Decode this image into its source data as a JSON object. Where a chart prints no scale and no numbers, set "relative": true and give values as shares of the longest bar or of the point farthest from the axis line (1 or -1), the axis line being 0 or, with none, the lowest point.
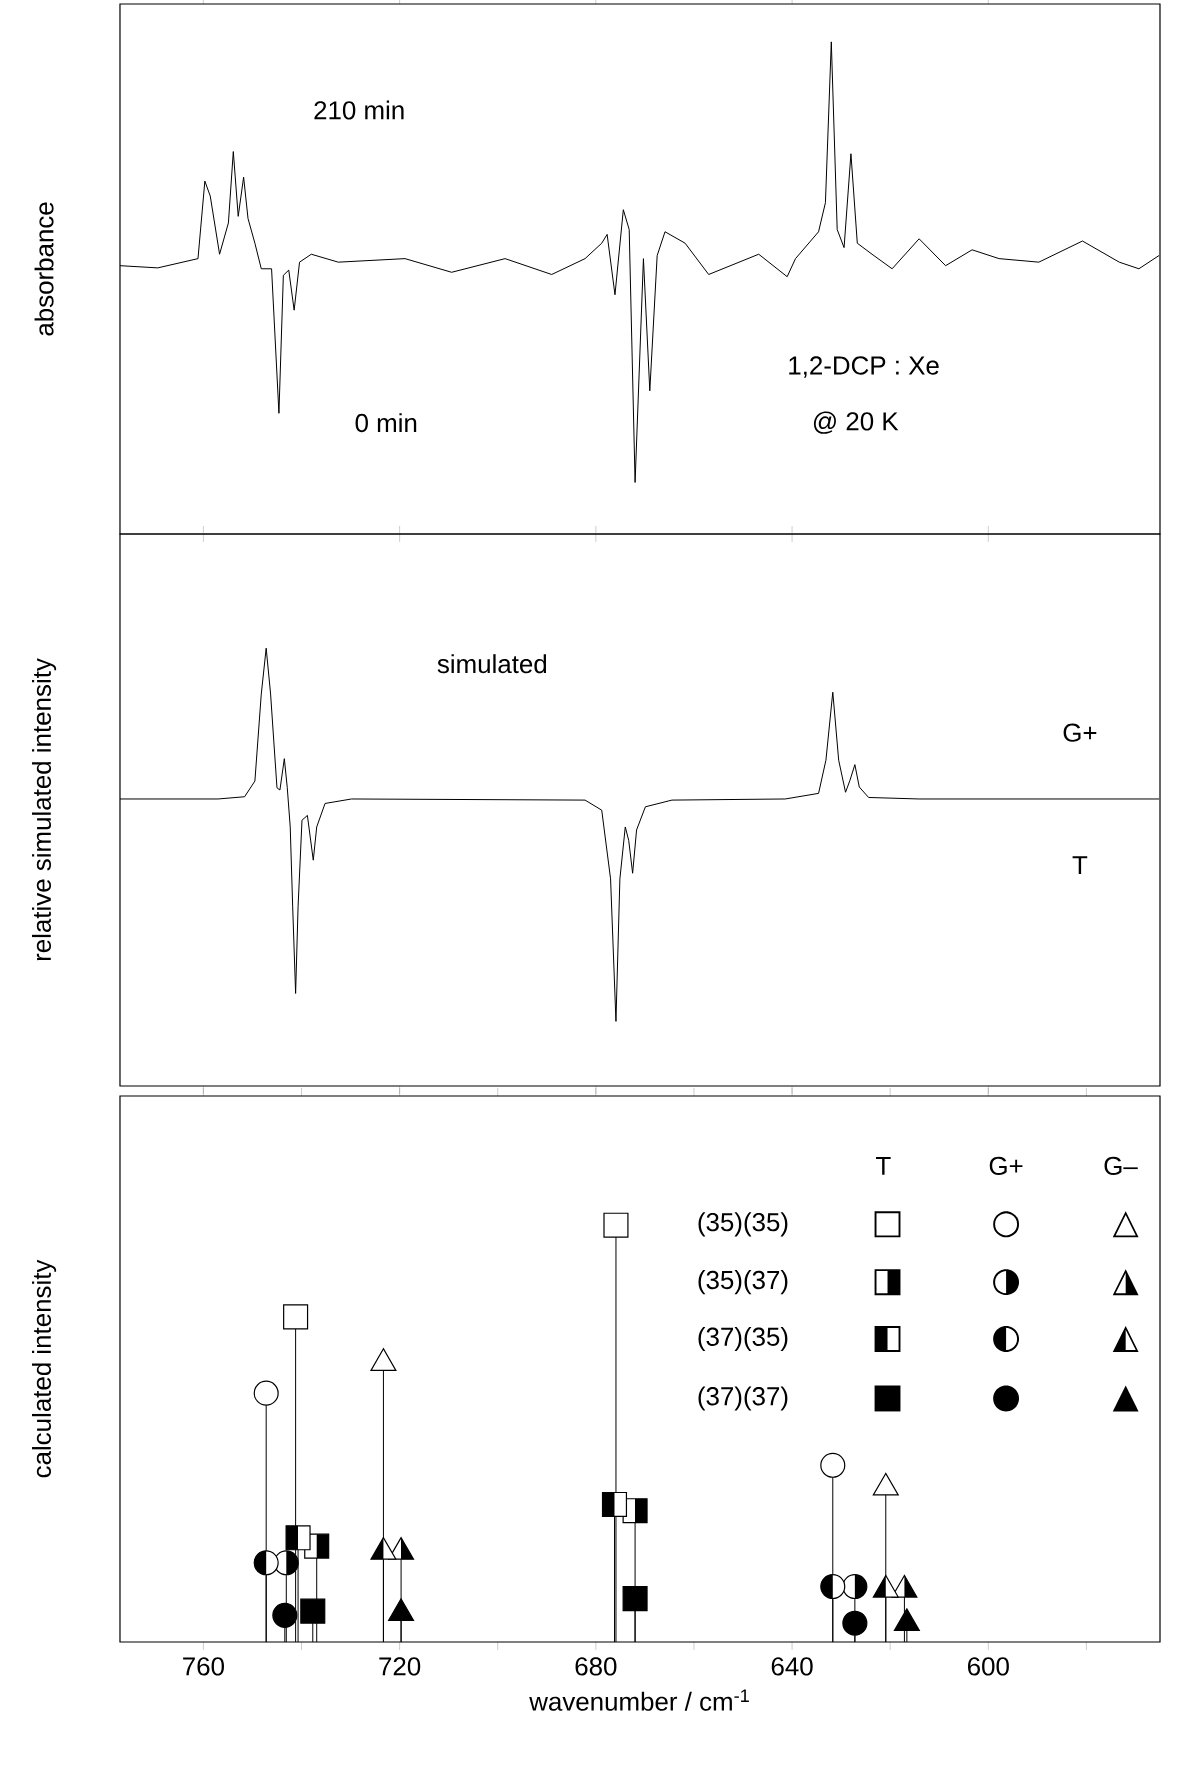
{
  "chart_data": [
    {
      "type": "line",
      "relative": true,
      "ylabel": "absorbance",
      "annotations": [
        "210 min",
        "0 min",
        "1,2-DCP : Xe",
        "@ 20 K"
      ],
      "xlim": [
        777,
        565
      ],
      "xticks": [
        760,
        720,
        680,
        640,
        600
      ],
      "tick_labels": false,
      "series": [
        {
          "color": "#000000",
          "x": [
            777.0,
            769.3,
            761.1,
            759.7,
            758.6,
            756.7,
            754.9,
            753.9,
            752.9,
            751.8,
            750.9,
            749.5,
            748.2,
            746.1,
            744.6,
            743.7,
            742.6,
            741.5,
            740.4,
            738.0,
            732.5,
            718.9,
            709.4,
            698.5,
            689.0,
            682.2,
            678.8,
            677.7,
            676.1,
            674.4,
            673.2,
            672.0,
            670.3,
            669.0,
            667.5,
            665.9,
            661.8,
            657.0,
            646.8,
            641.0,
            639.3,
            634.6,
            633.2,
            632.0,
            630.8,
            629.4,
            628.0,
            626.7,
            623.7,
            619.6,
            614.1,
            608.7,
            603.3,
            597.8,
            589.7,
            580.8,
            573.3,
            569.3,
            565.2
          ],
          "values": [
            0.492,
            0.487,
            0.508,
            0.684,
            0.65,
            0.518,
            0.589,
            0.751,
            0.604,
            0.693,
            0.599,
            0.543,
            0.485,
            0.485,
            0.157,
            0.47,
            0.482,
            0.391,
            0.5,
            0.518,
            0.5,
            0.508,
            0.477,
            0.508,
            0.472,
            0.508,
            0.543,
            0.563,
            0.426,
            0.619,
            0.574,
            0,
            0.508,
            0.208,
            0.515,
            0.569,
            0.543,
            0.472,
            0.518,
            0.467,
            0.508,
            0.569,
            0.635,
            1,
            0.574,
            0.533,
            0.746,
            0.543,
            0.518,
            0.485,
            0.553,
            0.492,
            0.528,
            0.508,
            0.5,
            0.548,
            0.5,
            0.485,
            0.515
          ]
        }
      ]
    },
    {
      "type": "line",
      "relative": true,
      "ylabel": "relative simulated intensity",
      "annotations": [
        "simulated",
        "G+",
        "T"
      ],
      "xlim": [
        777,
        565
      ],
      "xticks": [
        760,
        720,
        680,
        640,
        600
      ],
      "tick_labels": false,
      "series": [
        {
          "color": "#000000",
          "x": [
            777.0,
            757.0,
            751.6,
            749.5,
            748.2,
            747.2,
            746.3,
            745.0,
            744.4,
            743.5,
            742.9,
            742.3,
            741.8,
            741.2,
            740.7,
            739.9,
            738.8,
            737.6,
            736.9,
            735.2,
            729.8,
            682.2,
            678.8,
            677.0,
            675.9,
            675.1,
            674.0,
            673.3,
            672.5,
            671.7,
            669.9,
            664.5,
            641.4,
            634.6,
            633.1,
            631.7,
            630.5,
            629.1,
            628.2,
            627.2,
            626.3,
            624.4,
            614.1,
            565.2
          ],
          "values": [
            0.596,
            0.596,
            0.602,
            0.644,
            0.877,
            1,
            0.877,
            0.626,
            0.62,
            0.704,
            0.626,
            0.521,
            0.307,
            0.075,
            0.307,
            0.539,
            0.552,
            0.432,
            0.521,
            0.584,
            0.596,
            0.593,
            0.566,
            0.382,
            0,
            0.382,
            0.521,
            0.485,
            0.397,
            0.513,
            0.575,
            0.593,
            0.596,
            0.611,
            0.7,
            0.882,
            0.7,
            0.614,
            0.646,
            0.688,
            0.628,
            0.6,
            0.596,
            0.596
          ]
        }
      ]
    },
    {
      "type": "lollipop",
      "relative": true,
      "ylabel": "calculated intensity",
      "xlabel": "wavenumber / cm$^{-1}$",
      "annotations": [
        "T",
        "G+",
        "G–",
        "(35)(35)",
        "(35)(37)",
        "(37)(35)",
        "(37)(37)",
        "□",
        "○",
        "△",
        "◨",
        "◑",
        "◮",
        "◧",
        "◐",
        "◭",
        "■",
        "●",
        "▲"
      ],
      "xlim": [
        777,
        565
      ],
      "xticks": [
        760,
        {
          "value": 740,
          "label": null
        },
        720,
        {
          "value": 700,
          "label": null
        },
        680,
        {
          "value": 660,
          "label": null
        },
        640,
        {
          "value": 620,
          "label": null
        },
        600,
        {
          "value": 580,
          "label": null
        }
      ],
      "tick_labels": "x",
      "series": [
        {
          "color": "#000000",
          "marker": "square",
          "x": [
            741.2,
            675.9
          ],
          "values": [
            0.78,
            1.0
          ]
        },
        {
          "color": "#000000",
          "marker": "square",
          "x": [
            736.9,
            672.0
          ],
          "values": [
            0.23,
            0.315
          ]
        },
        {
          "color": "#000000",
          "marker": "square",
          "x": [
            740.7,
            676.2
          ],
          "values": [
            0.25,
            0.33
          ]
        },
        {
          "color": "#000000",
          "marker": "square",
          "x": [
            737.7,
            672.0
          ],
          "values": [
            0.074,
            0.104
          ]
        },
        {
          "color": "#000000",
          "marker": "circle",
          "x": [
            747.2,
            631.7
          ],
          "values": [
            0.597,
            0.424
          ]
        },
        {
          "color": "#000000",
          "marker": "circle",
          "x": [
            743.1,
            627.2
          ],
          "values": [
            0.19,
            0.133
          ]
        },
        {
          "color": "#000000",
          "marker": "circle",
          "x": [
            747.2,
            631.7
          ],
          "values": [
            0.19,
            0.133
          ]
        },
        {
          "color": "#000000",
          "marker": "circle",
          "x": [
            743.4,
            627.2
          ],
          "values": [
            0.064,
            0.045
          ]
        },
        {
          "color": "#000000",
          "marker": "triangle",
          "x": [
            723.3,
            620.9
          ],
          "values": [
            0.669,
            0.37
          ]
        },
        {
          "color": "#000000",
          "marker": "triangle",
          "x": [
            719.7,
            617.1
          ],
          "values": [
            0.216,
            0.125
          ]
        },
        {
          "color": "#000000",
          "marker": "triangle",
          "x": [
            723.3,
            620.9
          ],
          "values": [
            0.216,
            0.125
          ]
        },
        {
          "color": "#000000",
          "marker": "triangle",
          "x": [
            719.7,
            616.6
          ],
          "values": [
            0.069,
            0.045
          ]
        }
      ]
    }
  ]
}
